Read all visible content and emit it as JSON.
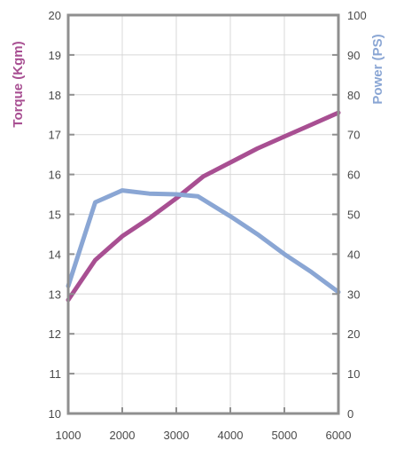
{
  "chart_data": {
    "type": "line",
    "title": "",
    "xlabel": "",
    "x_ticks": [
      1000,
      2000,
      3000,
      4000,
      5000,
      6000
    ],
    "xlim": [
      1000,
      6000
    ],
    "grid": true,
    "y_left": {
      "label": "Torque (Kgm)",
      "ylim": [
        10,
        20
      ],
      "ticks": [
        10,
        11,
        12,
        13,
        14,
        15,
        16,
        17,
        18,
        19,
        20
      ],
      "color": "#a84f92"
    },
    "y_right": {
      "label": "Power (PS)",
      "ylim": [
        0,
        100
      ],
      "ticks": [
        0,
        10,
        20,
        30,
        40,
        50,
        60,
        70,
        80,
        90,
        100
      ],
      "color": "#8aa6d4"
    },
    "series": [
      {
        "axis": "left",
        "color": "#a84f92",
        "x": [
          1000,
          1500,
          2000,
          2500,
          3000,
          3500,
          4000,
          4500,
          5000,
          5500,
          6000
        ],
        "y": [
          12.85,
          13.85,
          14.45,
          14.9,
          15.4,
          15.95,
          16.3,
          16.65,
          16.95,
          17.25,
          17.55
        ]
      },
      {
        "axis": "right",
        "color": "#8aa6d4",
        "x": [
          1000,
          1500,
          2000,
          2500,
          3000,
          3400,
          4000,
          4500,
          5000,
          5500,
          6000
        ],
        "y": [
          32,
          53,
          56,
          55.2,
          55,
          54.5,
          49.5,
          45,
          40,
          35.5,
          30.5
        ]
      }
    ]
  }
}
